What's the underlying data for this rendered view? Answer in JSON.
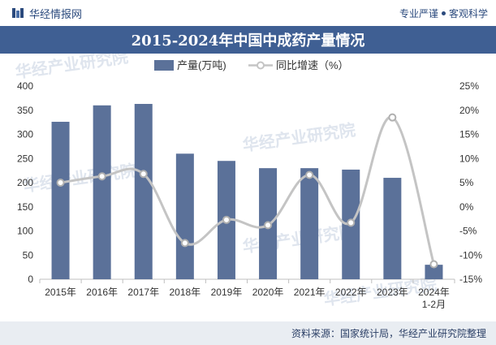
{
  "header": {
    "brand_name": "华经情报网",
    "slogan_left": "专业严谨",
    "slogan_right": "客观科学"
  },
  "footer": {
    "source": "资料来源：国家统计局，华经产业研究院整理"
  },
  "colors": {
    "bar": "#5b7199",
    "line": "#c4c4c4",
    "title_bg": "#3f5f93"
  },
  "chart_data": {
    "type": "bar",
    "title": "2015-2024年中国中成药产量情况",
    "categories": [
      "2015年",
      "2016年",
      "2017年",
      "2018年",
      "2019年",
      "2020年",
      "2021年",
      "2022年",
      "2023年",
      "2024年\n1-2月"
    ],
    "series": [
      {
        "name": "产量(万吨)",
        "type": "bar",
        "axis": "left",
        "values": [
          326,
          360,
          363,
          260,
          245,
          230,
          230,
          227,
          210,
          30
        ]
      },
      {
        "name": "同比增速（%）",
        "type": "line",
        "axis": "right",
        "values": [
          5,
          6.3,
          6.8,
          -7.5,
          -2.7,
          -3.8,
          6.6,
          -3.3,
          18.5,
          -11.9
        ]
      }
    ],
    "left_axis": {
      "ylim": [
        0,
        400
      ],
      "ticks": [
        "0",
        "50",
        "100",
        "150",
        "200",
        "250",
        "300",
        "350",
        "400"
      ]
    },
    "right_axis": {
      "ylim": [
        -15,
        25
      ],
      "ticks": [
        "-15%",
        "-10%",
        "-5%",
        "0%",
        "5%",
        "10%",
        "15%",
        "20%",
        "25%"
      ]
    },
    "grid": false,
    "legend_position": "top-center",
    "watermark": "华经产业研究院"
  }
}
